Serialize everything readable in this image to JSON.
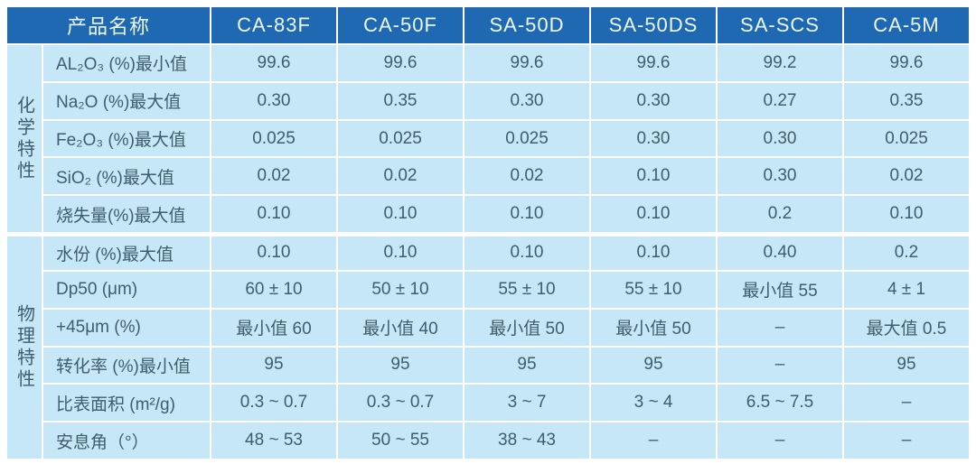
{
  "colors": {
    "header_bg": "#1e69b2",
    "header_text": "#eef7fd",
    "cell_bg": "#c6e7f8",
    "grid_line": "#ffffff",
    "body_text": "#3f5e6c"
  },
  "chart_data": {
    "type": "table",
    "corner_header": "产品名称",
    "columns": [
      "产品名称",
      "CA-83F",
      "CA-50F",
      "SA-50D",
      "SA-50DS",
      "SA-SCS",
      "CA-5M"
    ],
    "row_groups": [
      {
        "name": "化学特性",
        "rows": [
          {
            "label": "AL₂O₃ (%)最小值",
            "values": [
              "99.6",
              "99.6",
              "99.6",
              "99.6",
              "99.2",
              "99.6"
            ]
          },
          {
            "label": "Na₂O (%)最大值",
            "values": [
              "0.30",
              "0.35",
              "0.30",
              "0.30",
              "0.27",
              "0.35"
            ]
          },
          {
            "label": "Fe₂O₃ (%)最大值",
            "values": [
              "0.025",
              "0.025",
              "0.025",
              "0.30",
              "0.30",
              "0.025"
            ]
          },
          {
            "label": "SiO₂ (%)最大值",
            "values": [
              "0.02",
              "0.02",
              "0.02",
              "0.10",
              "0.30",
              "0.02"
            ]
          },
          {
            "label": "烧失量(%)最大值",
            "values": [
              "0.10",
              "0.10",
              "0.10",
              "0.10",
              "0.2",
              "0.10"
            ]
          }
        ]
      },
      {
        "name": "物理特性",
        "rows": [
          {
            "label": "水份 (%)最大值",
            "values": [
              "0.10",
              "0.10",
              "0.10",
              "0.10",
              "0.40",
              "0.2"
            ]
          },
          {
            "label": "Dp50 (μm)",
            "values": [
              "60 ± 10",
              "50 ± 10",
              "55 ± 10",
              "55 ± 10",
              "最小值 55",
              "4 ± 1"
            ]
          },
          {
            "label": "+45μm (%)",
            "values": [
              "最小值 60",
              "最小值 40",
              "最小值 50",
              "最小值 50",
              "–",
              "最大值 0.5"
            ]
          },
          {
            "label": "转化率 (%)最小值",
            "values": [
              "95",
              "95",
              "95",
              "95",
              "–",
              "95"
            ]
          },
          {
            "label": "比表面积 (m²/g)",
            "values": [
              "0.3 ~ 0.7",
              "0.3 ~ 0.7",
              "3 ~ 7",
              "3 ~ 4",
              "6.5 ~ 7.5",
              "–"
            ]
          },
          {
            "label": "安息角（°）",
            "values": [
              "48 ~ 53",
              "50 ~ 55",
              "38 ~ 43",
              "–",
              "–",
              "–"
            ]
          }
        ]
      }
    ]
  }
}
